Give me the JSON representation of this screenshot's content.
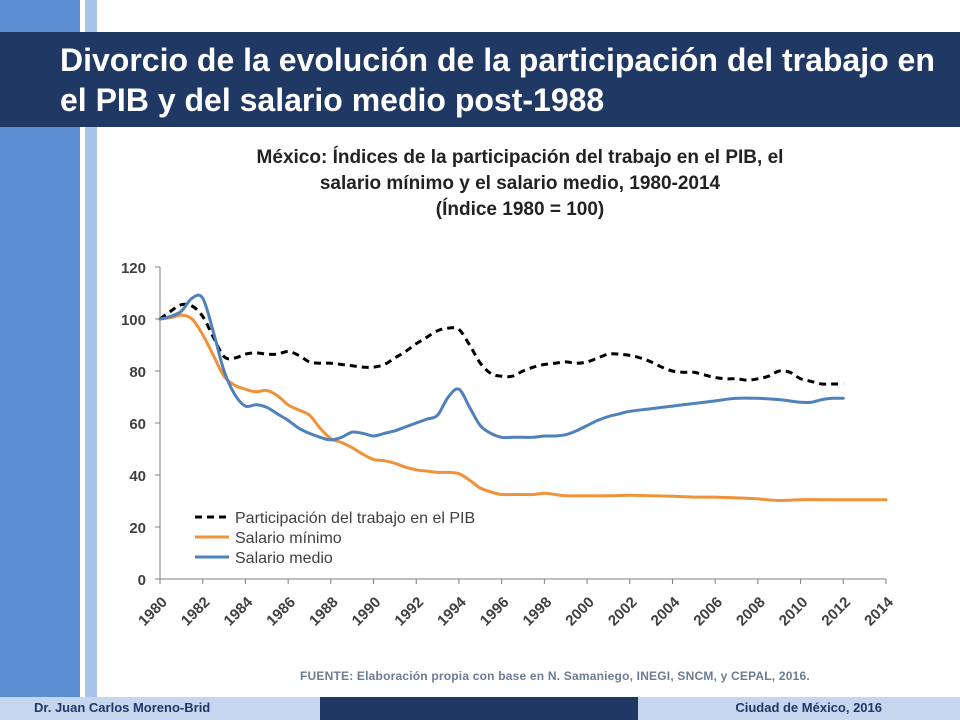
{
  "slide": {
    "title": "Divorcio de la evolución de la participación del trabajo en el PIB y del salario medio post-1988",
    "source": "FUENTE: Elaboración propia con base en N. Samaniego, INEGI, SNCM, y CEPAL, 2016.",
    "author": "Dr. Juan Carlos Moreno-Brid",
    "place_date": "Ciudad de México, 2016",
    "colors": {
      "header": "#1f3864",
      "stripe_dark": "#5b8fd2",
      "stripe_light": "#a9c4ea",
      "footer_light": "#c5d6ee"
    }
  },
  "chart_data": {
    "type": "line",
    "title_lines": [
      "México: Índices de la participación del trabajo en el PIB, el",
      "salario mínimo y el salario medio, 1980-2014",
      "(Índice 1980 = 100)"
    ],
    "xlabel": "",
    "ylabel": "",
    "ylim": [
      0,
      120
    ],
    "yticks": [
      0,
      20,
      40,
      60,
      80,
      100,
      120
    ],
    "xlim": [
      1980,
      2014
    ],
    "xticks": [
      1980,
      1982,
      1984,
      1986,
      1988,
      1990,
      1992,
      1994,
      1996,
      1998,
      2000,
      2002,
      2004,
      2006,
      2008,
      2010,
      2012,
      2014
    ],
    "grid": false,
    "legend_position": "bottom-left",
    "series": [
      {
        "name": "Participación del trabajo en el PIB",
        "color": "#000000",
        "dash": true,
        "x": [
          1980,
          1980.5,
          1981,
          1981.5,
          1982,
          1982.5,
          1983,
          1983.5,
          1984,
          1984.5,
          1985,
          1985.5,
          1986,
          1986.5,
          1987,
          1987.5,
          1988,
          1988.5,
          1989,
          1989.5,
          1990,
          1990.5,
          1991,
          1991.5,
          1992,
          1992.5,
          1993,
          1993.5,
          1994,
          1994.5,
          1995,
          1995.5,
          1996,
          1996.5,
          1997,
          1997.5,
          1998,
          1998.5,
          1999,
          1999.5,
          2000,
          2000.5,
          2001,
          2001.5,
          2002,
          2002.5,
          2003,
          2003.5,
          2004,
          2004.5,
          2005,
          2005.5,
          2006,
          2006.5,
          2007,
          2007.5,
          2008,
          2008.5,
          2009,
          2009.5,
          2010,
          2010.5,
          2011,
          2011.5,
          2012
        ],
        "values": [
          100,
          103,
          105.5,
          105,
          101,
          93,
          85.5,
          85,
          86.5,
          87,
          86.5,
          86.5,
          87.5,
          86,
          83.5,
          83,
          83,
          82.5,
          82,
          81.5,
          81.5,
          82.5,
          85,
          87.5,
          90.5,
          93,
          95.5,
          96.5,
          96,
          90,
          83,
          79,
          78,
          78,
          80,
          81.5,
          82.5,
          83,
          83.5,
          83,
          83.5,
          85,
          86.5,
          86.5,
          86,
          85,
          83.5,
          81.5,
          80,
          79.5,
          79.5,
          78.5,
          77.5,
          77,
          77,
          76.5,
          77,
          78,
          80,
          79.5,
          77,
          76,
          75,
          75,
          75
        ]
      },
      {
        "name": "Salario mínimo",
        "color": "#f0923a",
        "dash": false,
        "x": [
          1980,
          1980.5,
          1981,
          1981.5,
          1982,
          1982.5,
          1983,
          1983.5,
          1984,
          1984.5,
          1985,
          1985.5,
          1986,
          1986.5,
          1987,
          1987.5,
          1988,
          1988.5,
          1989,
          1989.5,
          1990,
          1990.5,
          1991,
          1991.5,
          1992,
          1992.5,
          1993,
          1993.5,
          1994,
          1994.5,
          1995,
          1995.5,
          1996,
          1996.5,
          1997,
          1997.5,
          1998,
          1998.5,
          1999,
          2000,
          2001,
          2002,
          2003,
          2004,
          2005,
          2006,
          2007,
          2008,
          2009,
          2010,
          2011,
          2012,
          2013,
          2014
        ],
        "values": [
          100,
          100.5,
          101.5,
          100,
          94,
          86,
          78,
          74.5,
          73,
          72,
          72.5,
          70.5,
          67,
          65,
          63,
          58,
          54,
          52.5,
          50.5,
          48,
          46,
          45.5,
          44.5,
          43,
          42,
          41.5,
          41,
          41,
          40.5,
          38,
          35,
          33.5,
          32.5,
          32.5,
          32.5,
          32.5,
          33,
          32.5,
          32,
          32,
          32,
          32.2,
          32,
          31.8,
          31.5,
          31.5,
          31.2,
          30.8,
          30.2,
          30.5,
          30.5,
          30.5,
          30.5,
          30.5
        ]
      },
      {
        "name": "Salario medio",
        "color": "#4f81bd",
        "dash": false,
        "x": [
          1980,
          1980.5,
          1981,
          1981.5,
          1982,
          1982.5,
          1983,
          1983.5,
          1984,
          1984.5,
          1985,
          1985.5,
          1986,
          1986.5,
          1987,
          1987.5,
          1988,
          1988.5,
          1989,
          1989.5,
          1990,
          1990.5,
          1991,
          1991.5,
          1992,
          1992.5,
          1993,
          1993.5,
          1994,
          1994.5,
          1995,
          1995.5,
          1996,
          1996.5,
          1997,
          1997.5,
          1998,
          1998.5,
          1999,
          1999.5,
          2000,
          2000.5,
          2001,
          2001.5,
          2002,
          2003,
          2004,
          2005,
          2006,
          2007,
          2008,
          2009,
          2010,
          2010.5,
          2011,
          2011.5,
          2012
        ],
        "values": [
          100,
          101,
          103,
          108,
          108,
          95,
          80,
          71,
          66.5,
          67,
          66,
          63.5,
          61,
          58,
          56,
          54.5,
          53.5,
          54.5,
          56.5,
          56,
          55,
          56,
          57,
          58.5,
          60,
          61.5,
          63,
          70,
          73,
          66,
          59,
          56,
          54.5,
          54.5,
          54.5,
          54.5,
          55,
          55,
          55.5,
          57,
          59,
          61,
          62.5,
          63.5,
          64.5,
          65.5,
          66.5,
          67.5,
          68.5,
          69.5,
          69.5,
          69,
          68,
          68,
          69,
          69.5,
          69.5
        ]
      }
    ]
  }
}
